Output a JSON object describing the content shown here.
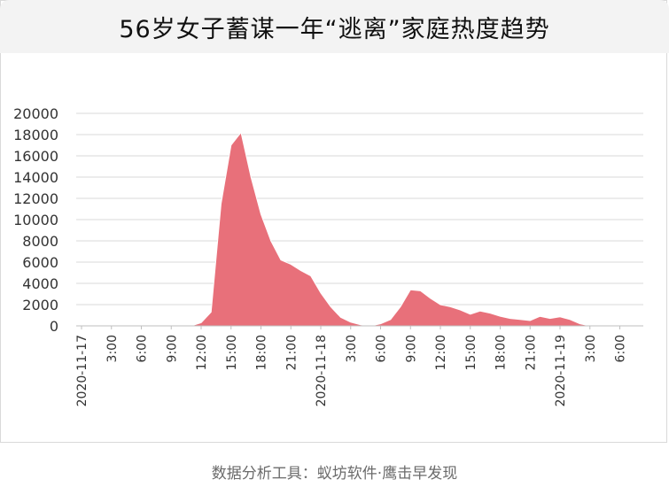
{
  "title": "56岁女子蓄谋一年“逃离”家庭热度趋势",
  "footer": "数据分析工具：蚁坊软件·鹰击早发现",
  "colors": {
    "area": "#e8707a",
    "grid": "#d9d9d9",
    "axis": "#333333"
  },
  "chart_data": {
    "type": "area",
    "title": "56岁女子蓄谋一年“逃离”家庭热度趋势",
    "xlabel": "",
    "ylabel": "",
    "ylim": [
      0,
      20000
    ],
    "yticks": [
      0,
      2000,
      4000,
      6000,
      8000,
      10000,
      12000,
      14000,
      16000,
      18000,
      20000
    ],
    "grid": true,
    "legend": "none",
    "xtick_labels": [
      "2020-11-17",
      "3:00",
      "6:00",
      "9:00",
      "12:00",
      "15:00",
      "18:00",
      "21:00",
      "2020-11-18",
      "3:00",
      "6:00",
      "9:00",
      "12:00",
      "15:00",
      "18:00",
      "21:00",
      "2020-11-19",
      "3:00",
      "6:00"
    ],
    "x_hours": [
      0,
      1,
      2,
      3,
      4,
      5,
      6,
      7,
      8,
      9,
      10,
      11,
      12,
      13,
      14,
      15,
      16,
      17,
      18,
      19,
      20,
      21,
      22,
      23,
      24,
      25,
      26,
      27,
      28,
      29,
      30,
      31,
      32,
      33,
      34,
      35,
      36,
      37,
      38,
      39,
      40,
      41,
      42,
      43,
      44,
      45,
      46,
      47,
      48,
      49,
      50,
      51,
      52,
      53,
      54,
      55,
      56
    ],
    "values": [
      0,
      0,
      0,
      0,
      0,
      0,
      0,
      0,
      0,
      0,
      0,
      0,
      300,
      1300,
      11500,
      17000,
      18200,
      14000,
      10500,
      8000,
      6200,
      5800,
      5200,
      4700,
      3100,
      1800,
      800,
      350,
      100,
      0,
      200,
      600,
      1800,
      3400,
      3300,
      2600,
      2000,
      1800,
      1500,
      1100,
      1400,
      1200,
      900,
      700,
      600,
      500,
      900,
      700,
      850,
      600,
      200,
      0,
      0,
      0,
      0,
      0,
      0
    ]
  }
}
